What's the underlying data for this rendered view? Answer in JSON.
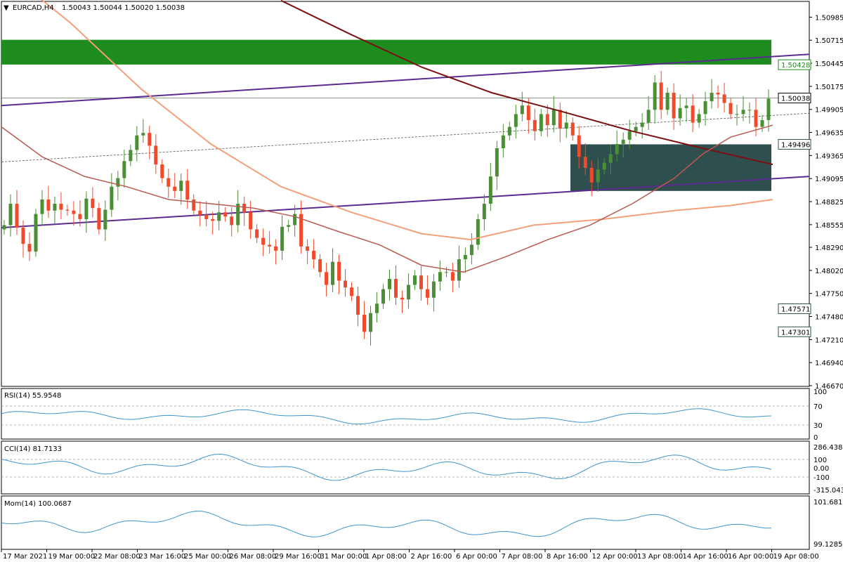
{
  "header": {
    "symbol": "EURCAD,H4",
    "quote": "1.50043 1.50044 1.50020 1.50038"
  },
  "colors": {
    "bull": "#4a8f35",
    "bear": "#f04a2a",
    "green_zone": "#1e8c1e",
    "dark_zone": "#2f4f4f",
    "channel": "#5b2c8f",
    "ma_slow": "#7a1010",
    "ma_mid": "#b85a50",
    "ma_fast": "#f4a07a",
    "indicator": "#3f95cf",
    "grid_dash": "#9a9a9a"
  },
  "price_axis": {
    "ticks": [
      "1.50985",
      "1.50715",
      "1.50445",
      "1.50175",
      "1.49905",
      "1.49635",
      "1.49365",
      "1.49095",
      "1.48825",
      "1.48555",
      "1.48290",
      "1.48020",
      "1.47750",
      "1.47480",
      "1.47210",
      "1.46940",
      "1.46670"
    ],
    "min": 1.4667,
    "max": 1.5112
  },
  "price_badges": [
    {
      "value": "1.50428",
      "kind": "green"
    },
    {
      "value": "1.50038",
      "kind": "current"
    },
    {
      "value": "1.49496",
      "kind": "dark"
    },
    {
      "value": "1.47571",
      "kind": "dark"
    },
    {
      "value": "1.47301",
      "kind": "dark"
    }
  ],
  "time_axis": [
    "17 Mar 2021",
    "19 Mar 00:00",
    "22 Mar 08:00",
    "23 Mar 16:00",
    "25 Mar 00:00",
    "26 Mar 08:00",
    "29 Mar 16:00",
    "31 Mar 00:00",
    "1 Apr 08:00",
    "2 Apr 16:00",
    "6 Apr 00:00",
    "7 Apr 08:00",
    "8 Apr 16:00",
    "12 Apr 00:00",
    "13 Apr 08:00",
    "14 Apr 16:00",
    "16 Apr 00:00",
    "19 Apr 08:00"
  ],
  "rsi": {
    "title": "RSI(14) 55.9548",
    "ticks": [
      "70",
      "30",
      "100",
      "0"
    ]
  },
  "cci": {
    "title": "CCI(14) 81.7133",
    "ticks": [
      "286.4384",
      "100",
      "0.00",
      "-100",
      "-315.0439"
    ]
  },
  "mom": {
    "title": "Mom(14) 100.0687",
    "ticks": [
      "101.681",
      "99.1285"
    ]
  },
  "chart_data": {
    "type": "line",
    "series_kind": "candlestick",
    "symbol": "EURCAD",
    "timeframe": "H4",
    "ylim": [
      1.4667,
      1.5112
    ],
    "close_series": [
      1.4855,
      1.488,
      1.4852,
      1.4833,
      1.4824,
      1.4868,
      1.4885,
      1.4872,
      1.488,
      1.4873,
      1.4872,
      1.4868,
      1.4862,
      1.4886,
      1.4875,
      1.485,
      1.4873,
      1.49,
      1.491,
      1.493,
      1.4943,
      1.496,
      1.4963,
      1.4948,
      1.4926,
      1.491,
      1.49,
      1.4895,
      1.4907,
      1.4885,
      1.4872,
      1.4867,
      1.4862,
      1.486,
      1.487,
      1.4865,
      1.4855,
      1.488,
      1.487,
      1.485,
      1.484,
      1.4832,
      1.483,
      1.4825,
      1.4853,
      1.4855,
      1.4868,
      1.483,
      1.4825,
      1.4815,
      1.48,
      1.4785,
      1.4812,
      1.479,
      1.4782,
      1.4772,
      1.475,
      1.473,
      1.4752,
      1.4763,
      1.478,
      1.4792,
      1.477,
      1.4768,
      1.4785,
      1.4796,
      1.478,
      1.477,
      1.4789,
      1.48,
      1.48,
      1.479,
      1.4815,
      1.482,
      1.4832,
      1.4862,
      1.488,
      1.4912,
      1.4945,
      1.496,
      1.497,
      1.4985,
      1.4995,
      1.4978,
      1.4965,
      1.4985,
      1.4972,
      1.499,
      1.4968,
      1.4975,
      1.496,
      1.4935,
      1.4922,
      1.4905,
      1.492,
      1.4928,
      1.4938,
      1.495,
      1.4955,
      1.4965,
      1.497,
      1.4975,
      1.499,
      1.5022,
      1.499,
      1.501,
      1.498,
      1.4992,
      1.4995,
      1.4975,
      1.4985,
      1.5,
      1.501,
      1.5008,
      1.4998,
      1.4985,
      1.4985,
      1.499,
      1.499,
      1.497,
      1.4978,
      1.5003
    ]
  }
}
